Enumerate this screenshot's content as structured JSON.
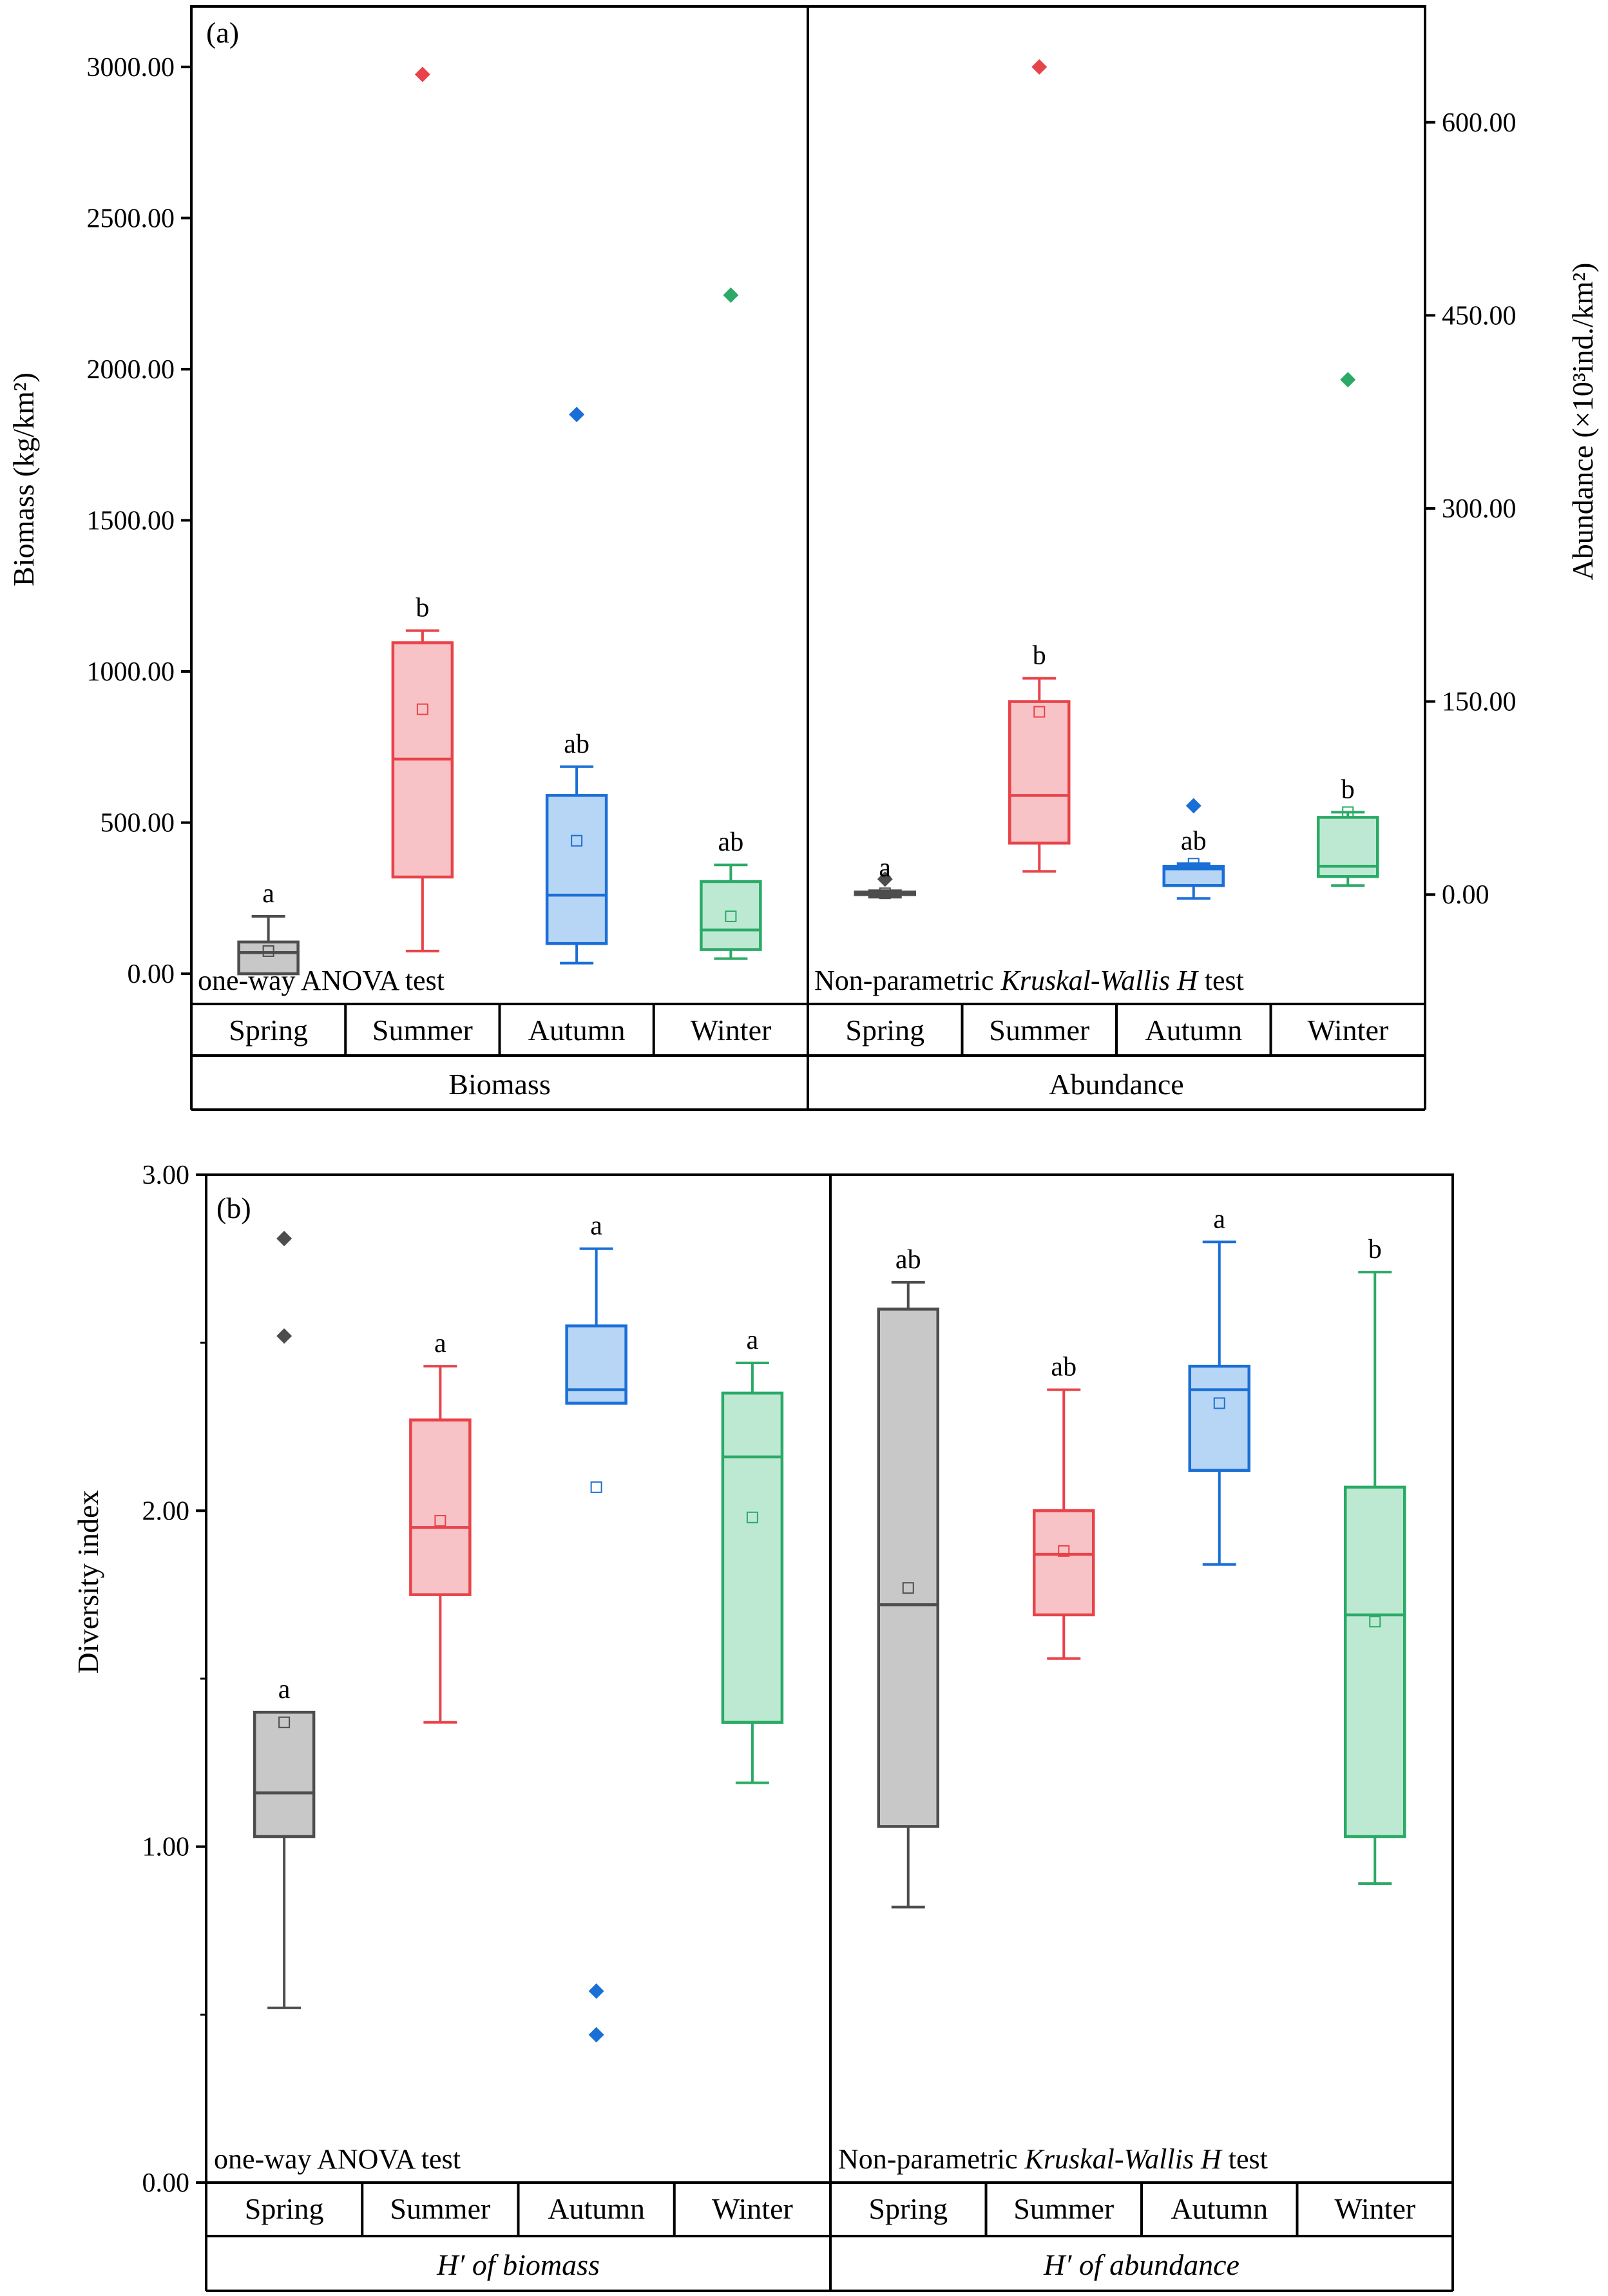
{
  "colors": {
    "Spring": {
      "stroke": "#4d4d4d",
      "fill": "#c8c8c8"
    },
    "Summer": {
      "stroke": "#e8434a",
      "fill": "#f8c3c6"
    },
    "Autumn": {
      "stroke": "#1a6fd6",
      "fill": "#b7d5f5"
    },
    "Winter": {
      "stroke": "#2aaa66",
      "fill": "#bde9d3"
    }
  },
  "chart_data": [
    {
      "type": "boxplot",
      "panel_label": "(a)",
      "ylabel_left": "Biomass (kg/km²)",
      "ylabel_right": "Abundance (×10³ind./km²)",
      "left_axis": {
        "ylim": [
          -100,
          3200
        ],
        "ticks": [
          0,
          500,
          1000,
          1500,
          2000,
          2500,
          3000
        ],
        "tick_labels": [
          "0.00",
          "500.00",
          "1000.00",
          "1500.00",
          "2000.00",
          "2500.00",
          "3000.00"
        ]
      },
      "right_axis": {
        "ylim": [
          -85,
          690
        ],
        "ticks": [
          0,
          150,
          300,
          450,
          600
        ],
        "tick_labels": [
          "0.00",
          "150.00",
          "300.00",
          "450.00",
          "600.00"
        ]
      },
      "groups": [
        {
          "name": "Biomass",
          "axis": "left",
          "test": "one-way ANOVA test",
          "categories": [
            "Spring",
            "Summer",
            "Autumn",
            "Winter"
          ],
          "boxes": [
            {
              "season": "Spring",
              "min": 0,
              "q1": 0,
              "median": 70,
              "q3": 105,
              "max": 190,
              "mean": 75,
              "outliers": [],
              "letter": "a"
            },
            {
              "season": "Summer",
              "min": 75,
              "q1": 320,
              "median": 710,
              "q3": 1095,
              "max": 1135,
              "mean": 875,
              "outliers": [
                2975
              ],
              "letter": "b"
            },
            {
              "season": "Autumn",
              "min": 35,
              "q1": 100,
              "median": 260,
              "q3": 590,
              "max": 685,
              "mean": 440,
              "outliers": [
                1850
              ],
              "letter": "ab"
            },
            {
              "season": "Winter",
              "min": 50,
              "q1": 80,
              "median": 145,
              "q3": 305,
              "max": 360,
              "mean": 190,
              "outliers": [
                2245
              ],
              "letter": "ab"
            }
          ]
        },
        {
          "name": "Abundance",
          "axis": "right",
          "test_prefix": "Non-parametric ",
          "test_italic": "Kruskal-Wallis H",
          "test_suffix": " test",
          "categories": [
            "Spring",
            "Summer",
            "Autumn",
            "Winter"
          ],
          "boxes": [
            {
              "season": "Spring",
              "min": -2,
              "q1": 0,
              "median": 1,
              "q3": 2,
              "max": 3,
              "mean": 1,
              "outliers": [
                12
              ],
              "letter": "a"
            },
            {
              "season": "Summer",
              "min": 18,
              "q1": 40,
              "median": 77,
              "q3": 150,
              "max": 168,
              "mean": 142,
              "outliers": [
                643
              ],
              "letter": "b"
            },
            {
              "season": "Autumn",
              "min": -3,
              "q1": 7,
              "median": 20,
              "q3": 22,
              "max": 24,
              "mean": 24,
              "outliers": [
                69
              ],
              "letter": "ab"
            },
            {
              "season": "Winter",
              "min": 7,
              "q1": 14,
              "median": 22,
              "q3": 60,
              "max": 64,
              "mean": 64,
              "outliers": [
                400
              ],
              "letter": "b"
            }
          ]
        }
      ]
    },
    {
      "type": "boxplot",
      "panel_label": "(b)",
      "ylabel": "Diversity index",
      "ylim": [
        0,
        3
      ],
      "ticks": [
        0,
        1,
        2,
        3
      ],
      "tick_labels": [
        "0.00",
        "1.00",
        "2.00",
        "3.00"
      ],
      "groups": [
        {
          "name": "H′ of biomass",
          "test": "one-way ANOVA test",
          "categories": [
            "Spring",
            "Summer",
            "Autumn",
            "Winter"
          ],
          "boxes": [
            {
              "season": "Spring",
              "min": 0.52,
              "q1": 1.03,
              "median": 1.16,
              "q3": 1.4,
              "max": 1.4,
              "mean": 1.37,
              "outliers": [
                2.81,
                2.52
              ],
              "letter": "a"
            },
            {
              "season": "Summer",
              "min": 1.37,
              "q1": 1.75,
              "median": 1.95,
              "q3": 2.27,
              "max": 2.43,
              "mean": 1.97,
              "outliers": [],
              "letter": "a"
            },
            {
              "season": "Autumn",
              "min": 2.32,
              "q1": 2.32,
              "median": 2.36,
              "q3": 2.55,
              "max": 2.78,
              "mean": 2.07,
              "outliers": [
                0.57,
                0.44
              ],
              "letter": "a"
            },
            {
              "season": "Winter",
              "min": 1.19,
              "q1": 1.37,
              "median": 2.16,
              "q3": 2.35,
              "max": 2.44,
              "mean": 1.98,
              "outliers": [],
              "letter": "a"
            }
          ]
        },
        {
          "name": "H′ of abundance",
          "test_prefix": "Non-parametric ",
          "test_italic": "Kruskal-Wallis H",
          "test_suffix": " test",
          "categories": [
            "Spring",
            "Summer",
            "Autumn",
            "Winter"
          ],
          "boxes": [
            {
              "season": "Spring",
              "min": 0.82,
              "q1": 1.06,
              "median": 1.72,
              "q3": 2.6,
              "max": 2.68,
              "mean": 1.77,
              "outliers": [],
              "letter": "ab"
            },
            {
              "season": "Summer",
              "min": 1.56,
              "q1": 1.69,
              "median": 1.87,
              "q3": 2.0,
              "max": 2.36,
              "mean": 1.88,
              "outliers": [],
              "letter": "ab"
            },
            {
              "season": "Autumn",
              "min": 1.84,
              "q1": 2.12,
              "median": 2.36,
              "q3": 2.43,
              "max": 2.8,
              "mean": 2.32,
              "outliers": [],
              "letter": "a"
            },
            {
              "season": "Winter",
              "min": 0.89,
              "q1": 1.03,
              "median": 1.69,
              "q3": 2.07,
              "max": 2.71,
              "mean": 1.67,
              "outliers": [],
              "letter": "b"
            }
          ]
        }
      ]
    }
  ]
}
